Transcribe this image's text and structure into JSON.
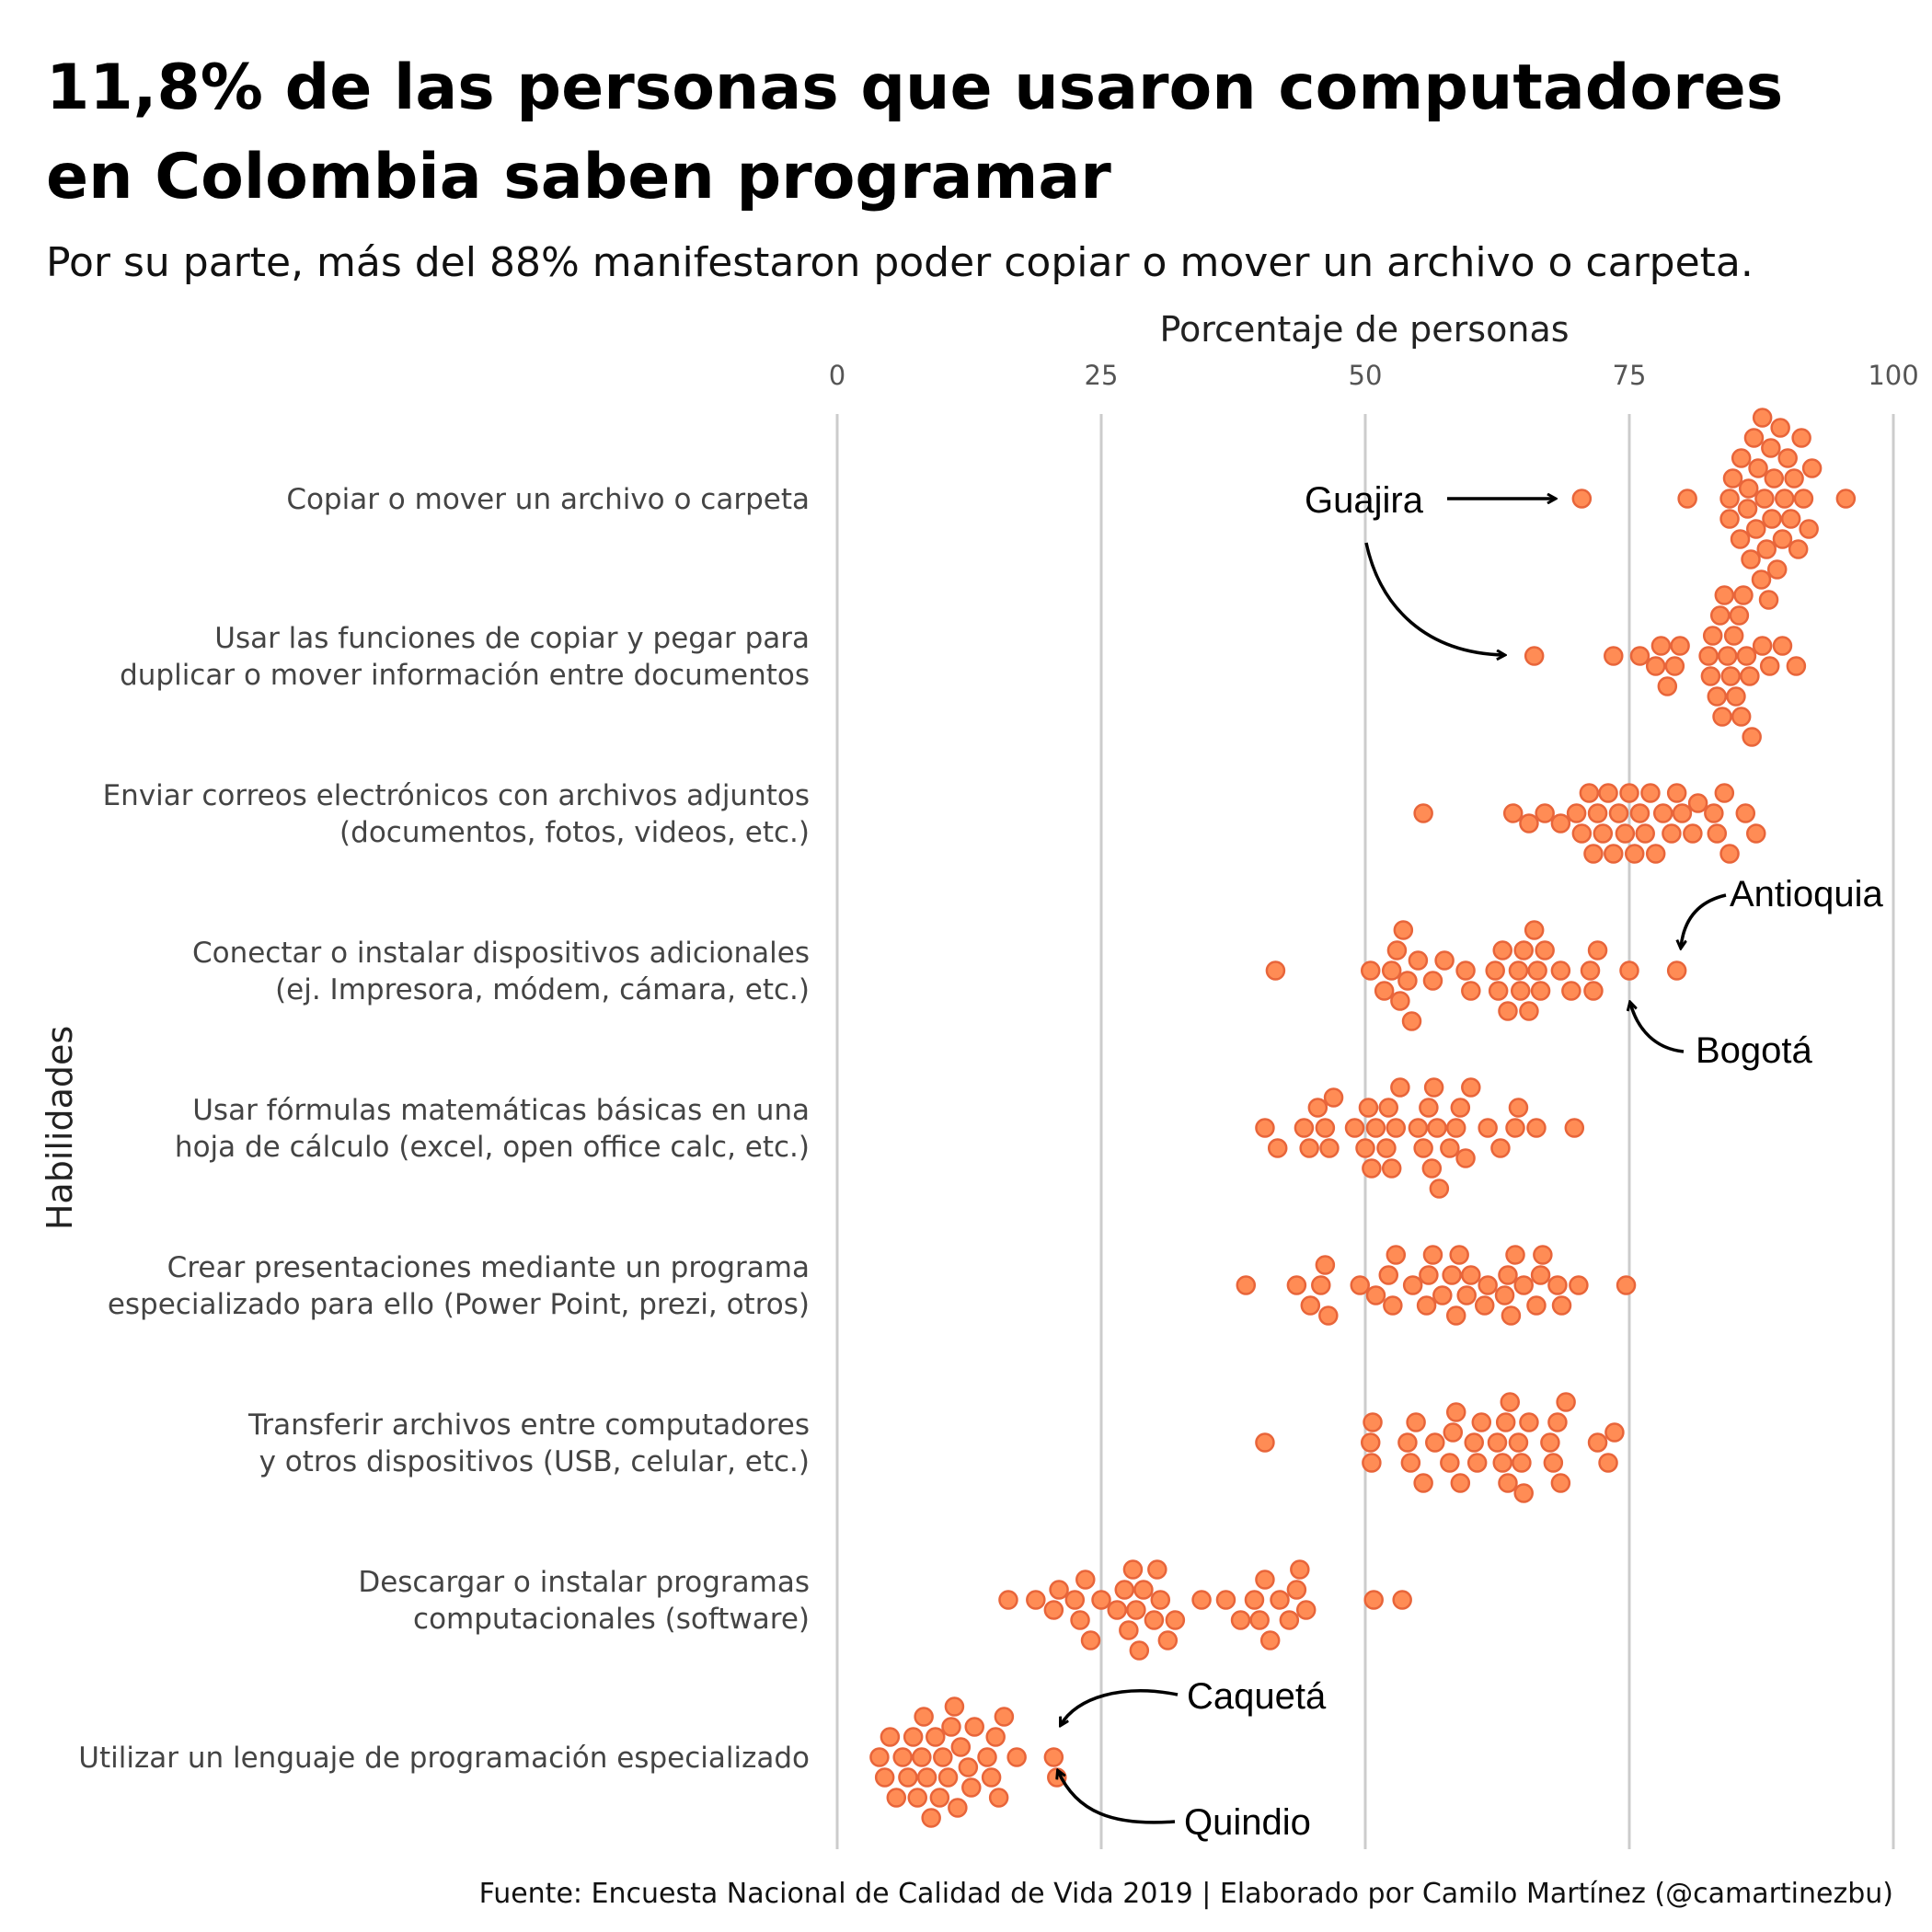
{
  "title_lines": [
    "11,8% de las personas que usaron computadores",
    "en Colombia saben programar"
  ],
  "subtitle": "Por su parte, más del 88% manifestaron poder copiar o mover un archivo o carpeta.",
  "caption": "Fuente: Encuesta Nacional de Calidad de Vida 2019 | Elaborado por Camilo Martínez (@camartinezbu)",
  "colors": {
    "point_fill": "#ff8c55",
    "point_stroke": "#e8653a",
    "grid": "#cccccc"
  },
  "chart_data": {
    "type": "scatter",
    "subtype": "beeswarm",
    "xlabel": "Porcentaje de personas",
    "ylabel": "Habilidades",
    "xlim": [
      0,
      100
    ],
    "xticks": [
      0,
      25,
      50,
      75,
      100
    ],
    "x_axis_position": "top",
    "grid": "vertical",
    "legend": "none",
    "categories": [
      {
        "lines": [
          "Copiar o mover un archivo o carpeta"
        ],
        "values": [
          70.5,
          80.5,
          84.5,
          84.5,
          84.8,
          85.5,
          85.6,
          86.2,
          86.3,
          86.5,
          86.8,
          87,
          87.2,
          87.5,
          87.6,
          87.8,
          88,
          88.2,
          88.4,
          88.5,
          88.7,
          89,
          89.3,
          89.5,
          89.7,
          90,
          90.3,
          90.6,
          91,
          91.3,
          91.5,
          92,
          92.3,
          95.5
        ]
      },
      {
        "lines": [
          "Usar las funciones de copiar y pegar para",
          "duplicar o mover información entre documentos"
        ],
        "values": [
          66,
          73.5,
          76,
          77.5,
          78,
          78.6,
          79.3,
          79.8,
          82.5,
          82.7,
          82.9,
          83.3,
          83.6,
          83.8,
          84,
          84.3,
          84.6,
          84.9,
          85.1,
          85.4,
          85.6,
          85.8,
          86.1,
          86.4,
          86.6,
          87.6,
          88.3,
          89.5,
          90.8
        ]
      },
      {
        "lines": [
          "Enviar correos electrónicos con archivos adjuntos",
          "(documentos, fotos, videos, etc.)"
        ],
        "values": [
          55.5,
          64,
          65.5,
          67,
          68.5,
          70,
          70.5,
          71.2,
          71.6,
          72,
          72.5,
          73,
          73.5,
          74,
          74.6,
          75,
          75.5,
          76,
          76.5,
          77,
          77.5,
          78.2,
          79,
          79.5,
          80,
          81,
          81.5,
          83,
          83.3,
          84,
          84.5,
          86,
          87
        ]
      },
      {
        "lines": [
          "Conectar o instalar dispositivos adicionales",
          "(ej. Impresora, módem, cámara, etc.)"
        ],
        "values": [
          41.5,
          50.5,
          51.8,
          52.5,
          53,
          53.3,
          53.6,
          54,
          54.4,
          55,
          56.4,
          57.5,
          59.5,
          60,
          62.3,
          62.6,
          63,
          63.5,
          64.5,
          64.7,
          65,
          65.5,
          66,
          66.3,
          66.6,
          67,
          68.5,
          69.5,
          71.3,
          71.6,
          72,
          75,
          79.5
        ]
      },
      {
        "lines": [
          "Usar fórmulas matemáticas básicas en una",
          "hoja de cálculo (excel, open office calc, etc.)"
        ],
        "values": [
          40.5,
          41.7,
          44.2,
          44.7,
          45.5,
          46.2,
          46.6,
          47,
          49,
          50,
          50.3,
          50.6,
          51,
          52,
          52.2,
          52.5,
          52.9,
          53.3,
          55,
          55.5,
          56,
          56.3,
          56.5,
          56.8,
          57,
          58,
          58.6,
          59,
          59.5,
          60,
          61.6,
          62.8,
          64.2,
          64.5,
          66.2,
          69.8
        ]
      },
      {
        "lines": [
          "Crear presentaciones mediante un programa",
          "especializado para ello (Power Point, prezi, otros)"
        ],
        "values": [
          38.7,
          43.5,
          44.8,
          45.8,
          46.2,
          46.5,
          49.5,
          51,
          52.2,
          52.6,
          52.9,
          54.5,
          55.8,
          56,
          56.4,
          57.3,
          58.2,
          58.6,
          58.9,
          59.6,
          60,
          61.3,
          61.6,
          63.2,
          63.5,
          63.8,
          64.2,
          65,
          66.2,
          66.6,
          66.8,
          68.2,
          68.6,
          70.2,
          74.7
        ]
      },
      {
        "lines": [
          "Transferir archivos entre computadores",
          "y otros dispositivos (USB, celular, etc.)"
        ],
        "values": [
          40.5,
          50.5,
          50.6,
          50.7,
          54,
          54.3,
          54.8,
          55.5,
          56.6,
          58,
          58.3,
          58.6,
          59,
          60.3,
          60.6,
          61,
          62.5,
          63,
          63.3,
          63.5,
          63.7,
          64.5,
          64.8,
          65,
          65.5,
          67.5,
          67.8,
          68.2,
          68.5,
          69,
          72,
          73,
          73.6
        ]
      },
      {
        "lines": [
          "Descargar o instalar programas",
          "computacionales (software)"
        ],
        "values": [
          16.2,
          18.8,
          20.5,
          21,
          22.5,
          23,
          23.5,
          24,
          25,
          26.5,
          27.2,
          27.6,
          28,
          28.3,
          28.6,
          29,
          30,
          30.3,
          30.6,
          31.3,
          32,
          34.5,
          36.8,
          38.2,
          39.5,
          40,
          40.5,
          41,
          41.9,
          42.8,
          43.5,
          43.8,
          44.4,
          50.8,
          53.5
        ]
      },
      {
        "lines": [
          "Utilizar un lenguaje de programación especializado"
        ],
        "values": [
          4,
          4.5,
          5,
          5.6,
          6.2,
          6.7,
          7.2,
          7.6,
          8,
          8.2,
          8.5,
          8.9,
          9.3,
          9.7,
          10,
          10.5,
          10.8,
          11.1,
          11.4,
          11.7,
          12.4,
          12.7,
          13,
          14.2,
          14.6,
          15,
          15.3,
          15.8,
          17,
          20.5,
          20.8
        ]
      }
    ]
  },
  "annotations": {
    "guajira": "Guajira",
    "antioquia": "Antioquia",
    "bogota": "Bogotá",
    "caqueta": "Caquetá",
    "quindio": "Quindio"
  }
}
